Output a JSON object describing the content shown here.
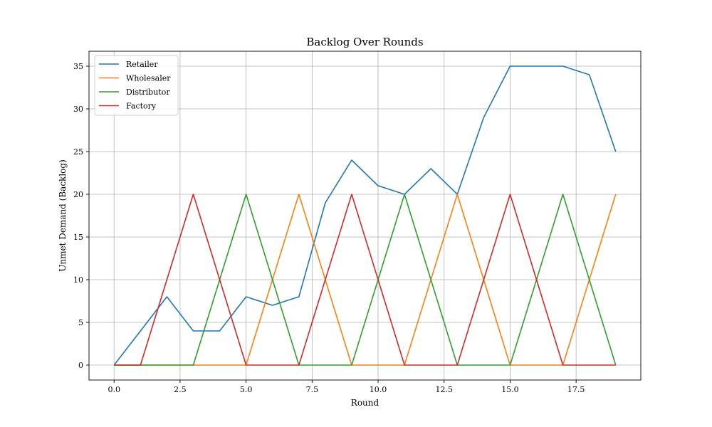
{
  "chart_data": {
    "type": "line",
    "title": "Backlog Over Rounds",
    "xlabel": "Round",
    "ylabel": "Unmet Demand (Backlog)",
    "xlim": [
      -0.95,
      19.95
    ],
    "ylim": [
      -1.75,
      36.75
    ],
    "xticks": [
      0,
      2.5,
      5,
      7.5,
      10,
      12.5,
      15,
      17.5
    ],
    "xtick_labels": [
      "0.0",
      "2.5",
      "5.0",
      "7.5",
      "10.0",
      "12.5",
      "15.0",
      "17.5"
    ],
    "yticks": [
      0,
      5,
      10,
      15,
      20,
      25,
      30,
      35
    ],
    "ytick_labels": [
      "0",
      "5",
      "10",
      "15",
      "20",
      "25",
      "30",
      "35"
    ],
    "grid": true,
    "legend_position": "top-left",
    "x": [
      0,
      1,
      2,
      3,
      4,
      5,
      6,
      7,
      8,
      9,
      10,
      11,
      12,
      13,
      14,
      15,
      16,
      17,
      18,
      19
    ],
    "series": [
      {
        "name": "Retailer",
        "color": "#1f77b4",
        "values": [
          0,
          4,
          8,
          4,
          4,
          8,
          7,
          8,
          19,
          24,
          21,
          20,
          23,
          20,
          29,
          35,
          35,
          35,
          34,
          25
        ]
      },
      {
        "name": "Wholesaler",
        "color": "#ff7f0e",
        "values": [
          0,
          0,
          0,
          0,
          0,
          0,
          10,
          20,
          10,
          0,
          0,
          0,
          10,
          20,
          10,
          0,
          0,
          0,
          10,
          20
        ]
      },
      {
        "name": "Distributor",
        "color": "#2ca02c",
        "values": [
          0,
          0,
          0,
          0,
          10,
          20,
          10,
          0,
          0,
          0,
          10,
          20,
          10,
          0,
          0,
          0,
          10,
          20,
          10,
          0
        ]
      },
      {
        "name": "Factory",
        "color": "#d62728",
        "values": [
          0,
          0,
          10,
          20,
          10,
          0,
          0,
          0,
          10,
          20,
          10,
          0,
          0,
          0,
          10,
          20,
          10,
          0,
          0,
          0
        ]
      }
    ]
  }
}
